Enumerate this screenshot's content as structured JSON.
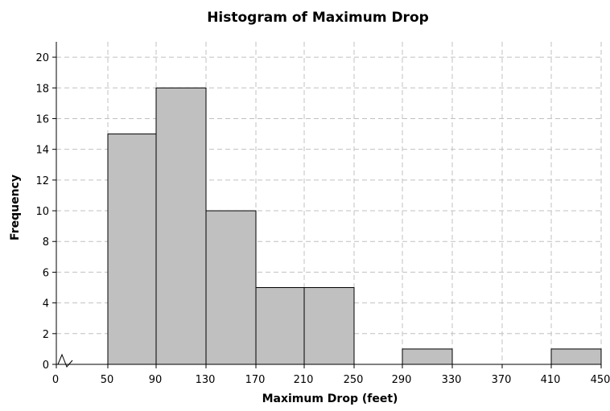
{
  "chart_data": {
    "type": "bar",
    "title": "Histogram of Maximum Drop",
    "xlabel": "Maximum Drop (feet)",
    "ylabel": "Frequency",
    "x_ticks": [
      0,
      50,
      90,
      130,
      170,
      210,
      250,
      290,
      330,
      370,
      410,
      450
    ],
    "y_ticks": [
      0,
      2,
      4,
      6,
      8,
      10,
      12,
      14,
      16,
      18,
      20
    ],
    "ylim": [
      0,
      21
    ],
    "grid": true,
    "axis_break": true,
    "bins": [
      {
        "from": 50,
        "to": 90,
        "value": 15
      },
      {
        "from": 90,
        "to": 130,
        "value": 18
      },
      {
        "from": 130,
        "to": 170,
        "value": 10
      },
      {
        "from": 170,
        "to": 210,
        "value": 5
      },
      {
        "from": 210,
        "to": 250,
        "value": 5
      },
      {
        "from": 250,
        "to": 290,
        "value": 0
      },
      {
        "from": 290,
        "to": 330,
        "value": 1
      },
      {
        "from": 330,
        "to": 370,
        "value": 0
      },
      {
        "from": 370,
        "to": 410,
        "value": 0
      },
      {
        "from": 410,
        "to": 450,
        "value": 1
      }
    ],
    "colors": {
      "bar_fill": "#c0c0c0",
      "bar_stroke": "#000000",
      "grid": "#c0c0c0"
    }
  }
}
